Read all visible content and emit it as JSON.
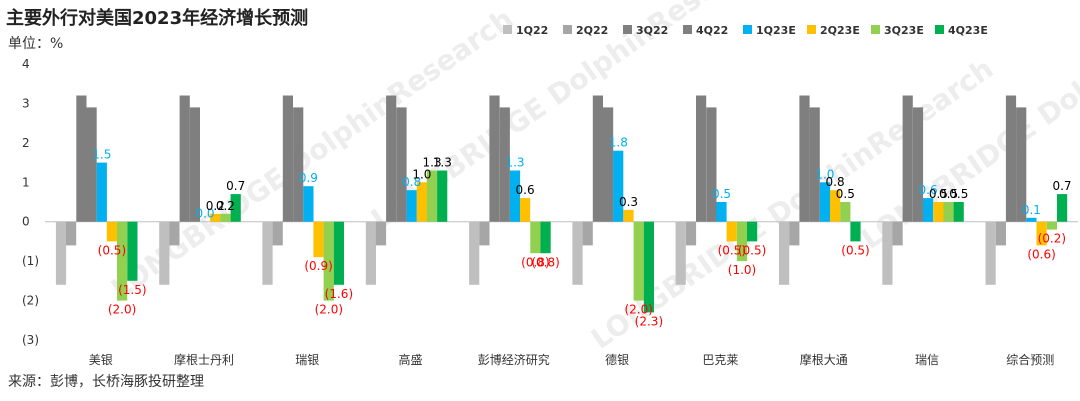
{
  "chart_data": {
    "type": "bar",
    "title": "主要外行对美国2023年经济增长预测",
    "ylabel": "单位：%",
    "source": "来源：彭博，长桥海豚投研整理",
    "watermark": "LONGBRIDGE DolphinResearch",
    "ylim": [
      -3,
      4
    ],
    "yticks": [
      "4",
      "3",
      "2",
      "1",
      "0",
      "(1)",
      "(2)",
      "(3)"
    ],
    "categories": [
      "美银",
      "摩根士丹利",
      "瑞银",
      "高盛",
      "彭博经济研究",
      "德银",
      "巴克莱",
      "摩根大通",
      "瑞信",
      "综合预测"
    ],
    "series": [
      {
        "name": "1Q22",
        "color": "#bfbfbf",
        "values": [
          -1.6,
          -1.6,
          -1.6,
          -1.6,
          -1.6,
          -1.6,
          -1.6,
          -1.6,
          -1.6,
          -1.6
        ]
      },
      {
        "name": "2Q22",
        "color": "#a6a6a6",
        "values": [
          -0.6,
          -0.6,
          -0.6,
          -0.6,
          -0.6,
          -0.6,
          -0.6,
          -0.6,
          -0.6,
          -0.6
        ]
      },
      {
        "name": "3Q22",
        "color": "#7f7f7f",
        "values": [
          3.2,
          3.2,
          3.2,
          3.2,
          3.2,
          3.2,
          3.2,
          3.2,
          3.2,
          3.2
        ]
      },
      {
        "name": "4Q22",
        "color": "#7f7f7f",
        "values": [
          2.9,
          2.9,
          2.9,
          2.9,
          2.9,
          2.9,
          2.9,
          2.9,
          2.9,
          2.9
        ]
      },
      {
        "name": "1Q23E",
        "color": "#00b0f0",
        "values": [
          1.5,
          0.0,
          0.9,
          0.8,
          1.3,
          1.8,
          0.5,
          1.0,
          0.6,
          0.1
        ]
      },
      {
        "name": "2Q23E",
        "color": "#ffc000",
        "values": [
          -0.5,
          0.2,
          -0.9,
          1.0,
          0.6,
          0.3,
          -0.5,
          0.8,
          0.5,
          -0.6
        ]
      },
      {
        "name": "3Q23E",
        "color": "#92d050",
        "values": [
          -2.0,
          0.2,
          -2.0,
          1.3,
          -0.8,
          -2.0,
          -1.0,
          0.5,
          0.5,
          -0.2
        ]
      },
      {
        "name": "4Q23E",
        "color": "#00b050",
        "values": [
          -1.5,
          0.7,
          -1.6,
          1.3,
          -0.8,
          -2.3,
          -0.5,
          -0.5,
          0.5,
          0.7
        ]
      }
    ],
    "data_labels": [
      {
        "category": 0,
        "series": 4,
        "text": "1.5",
        "color": "#00b0f0"
      },
      {
        "category": 0,
        "series": 5,
        "text": "(0.5)",
        "color": "#ff0000"
      },
      {
        "category": 0,
        "series": 6,
        "text": "(2.0)",
        "color": "#ff0000"
      },
      {
        "category": 0,
        "series": 7,
        "text": "(1.5)",
        "color": "#ff0000"
      },
      {
        "category": 1,
        "series": 4,
        "text": "0.0",
        "color": "#00b0f0"
      },
      {
        "category": 1,
        "series": 5,
        "text": "0.2",
        "color": "#000000"
      },
      {
        "category": 1,
        "series": 6,
        "text": "0.2",
        "color": "#000000"
      },
      {
        "category": 1,
        "series": 7,
        "text": "0.7",
        "color": "#000000"
      },
      {
        "category": 2,
        "series": 4,
        "text": "0.9",
        "color": "#00b0f0"
      },
      {
        "category": 2,
        "series": 5,
        "text": "(0.9)",
        "color": "#ff0000"
      },
      {
        "category": 2,
        "series": 6,
        "text": "(2.0)",
        "color": "#ff0000"
      },
      {
        "category": 2,
        "series": 7,
        "text": "(1.6)",
        "color": "#ff0000"
      },
      {
        "category": 3,
        "series": 4,
        "text": "0.8",
        "color": "#00b0f0"
      },
      {
        "category": 3,
        "series": 5,
        "text": "1.0",
        "color": "#000000"
      },
      {
        "category": 3,
        "series": 6,
        "text": "1.3",
        "color": "#000000"
      },
      {
        "category": 3,
        "series": 7,
        "text": "1.3",
        "color": "#000000"
      },
      {
        "category": 4,
        "series": 4,
        "text": "1.3",
        "color": "#00b0f0"
      },
      {
        "category": 4,
        "series": 5,
        "text": "0.6",
        "color": "#000000"
      },
      {
        "category": 4,
        "series": 6,
        "text": "(0.8)",
        "color": "#ff0000"
      },
      {
        "category": 4,
        "series": 7,
        "text": "(0.8)",
        "color": "#ff0000"
      },
      {
        "category": 5,
        "series": 4,
        "text": "1.8",
        "color": "#00b0f0"
      },
      {
        "category": 5,
        "series": 5,
        "text": "0.3",
        "color": "#000000"
      },
      {
        "category": 5,
        "series": 6,
        "text": "(2.0)",
        "color": "#ff0000"
      },
      {
        "category": 5,
        "series": 7,
        "text": "(2.3)",
        "color": "#ff0000"
      },
      {
        "category": 6,
        "series": 4,
        "text": "0.5",
        "color": "#00b0f0"
      },
      {
        "category": 6,
        "series": 5,
        "text": "(0.5)",
        "color": "#ff0000"
      },
      {
        "category": 6,
        "series": 6,
        "text": "(1.0)",
        "color": "#ff0000"
      },
      {
        "category": 6,
        "series": 7,
        "text": "(0.5)",
        "color": "#ff0000"
      },
      {
        "category": 7,
        "series": 4,
        "text": "1.0",
        "color": "#00b0f0"
      },
      {
        "category": 7,
        "series": 5,
        "text": "0.8",
        "color": "#000000"
      },
      {
        "category": 7,
        "series": 6,
        "text": "0.5",
        "color": "#000000"
      },
      {
        "category": 7,
        "series": 7,
        "text": "(0.5)",
        "color": "#ff0000"
      },
      {
        "category": 8,
        "series": 4,
        "text": "0.6",
        "color": "#00b0f0"
      },
      {
        "category": 8,
        "series": 5,
        "text": "0.5",
        "color": "#000000"
      },
      {
        "category": 8,
        "series": 6,
        "text": "0.5",
        "color": "#000000"
      },
      {
        "category": 8,
        "series": 7,
        "text": "0.5",
        "color": "#000000"
      },
      {
        "category": 9,
        "series": 4,
        "text": "0.1",
        "color": "#00b0f0"
      },
      {
        "category": 9,
        "series": 5,
        "text": "(0.6)",
        "color": "#ff0000"
      },
      {
        "category": 9,
        "series": 6,
        "text": "(0.2)",
        "color": "#ff0000"
      },
      {
        "category": 9,
        "series": 7,
        "text": "0.7",
        "color": "#000000"
      }
    ],
    "legend_position": "top-right",
    "grid": false
  }
}
